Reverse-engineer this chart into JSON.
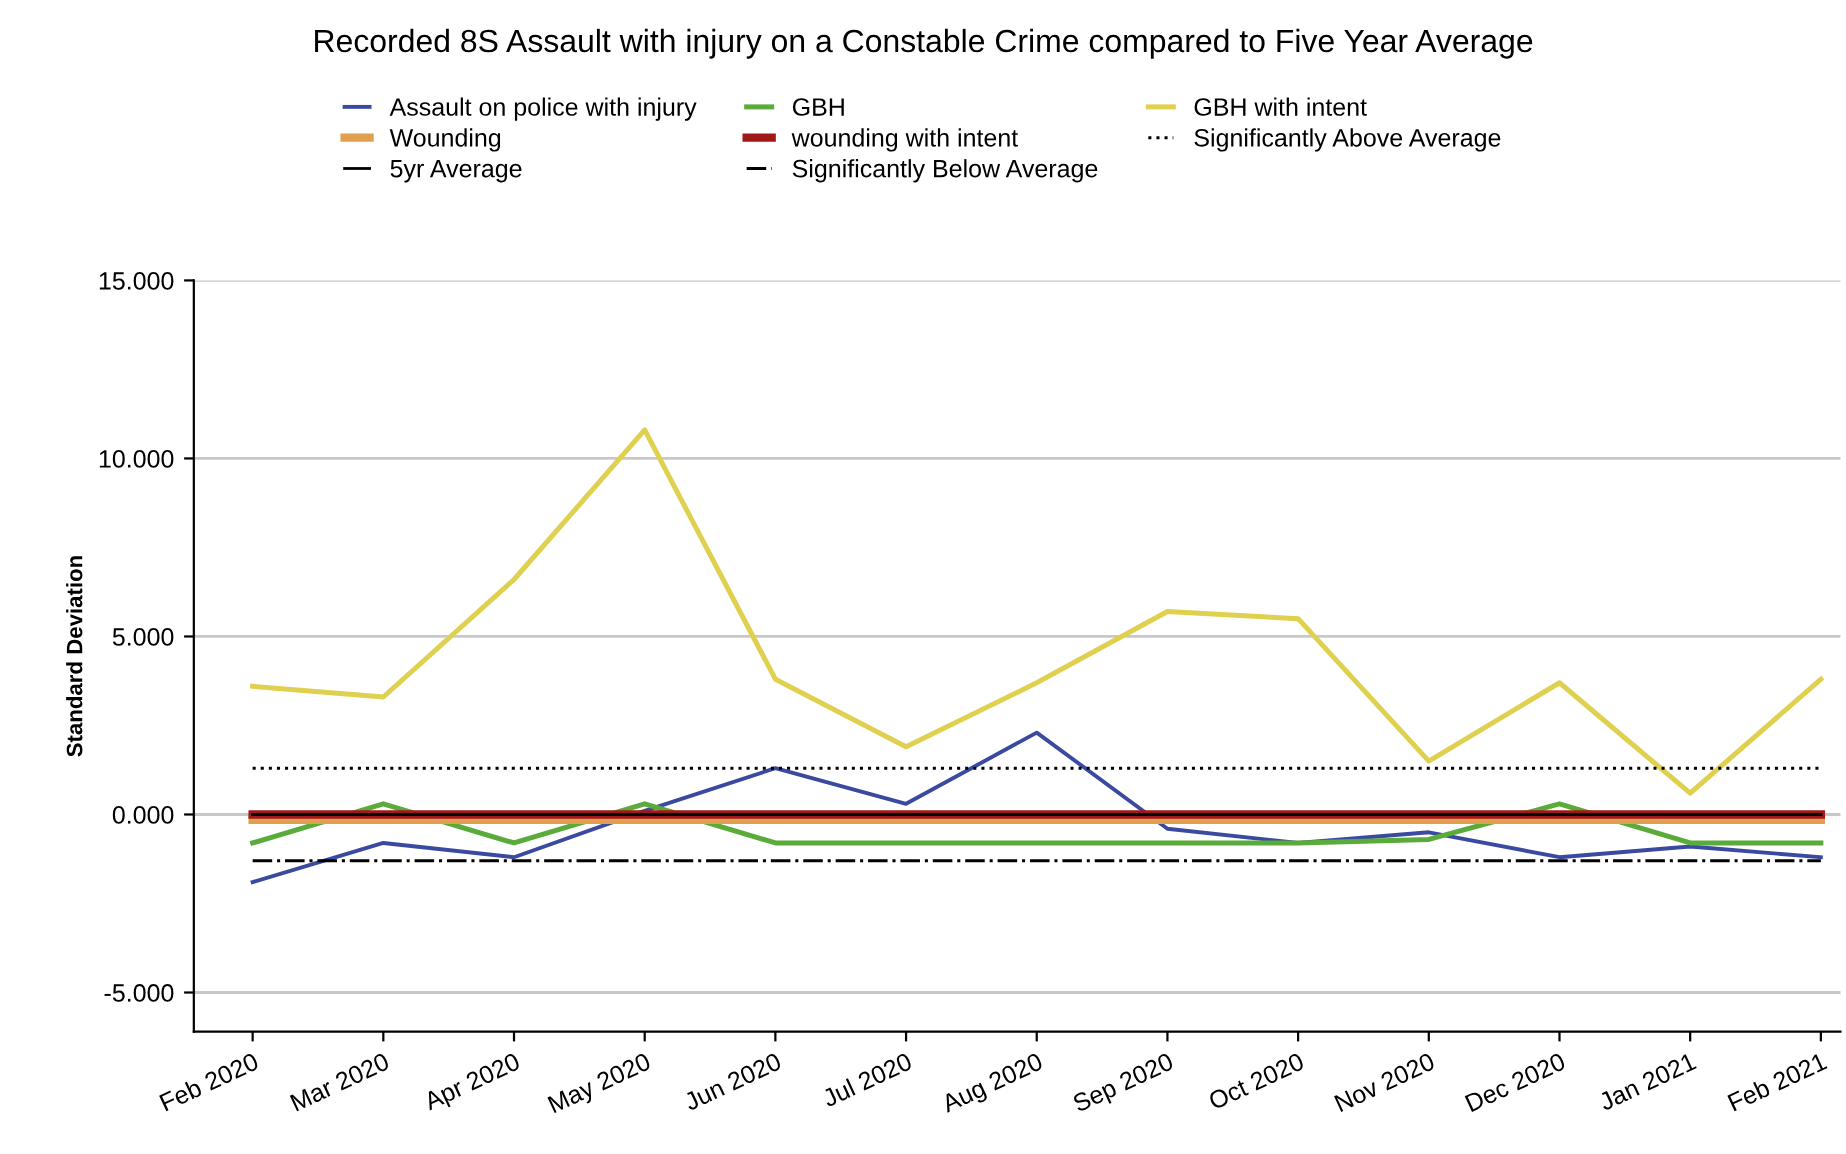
{
  "chart_data": {
    "type": "line",
    "title": "Recorded 8S Assault with injury on a Constable Crime compared to Five Year Average",
    "ylabel": "Standard Deviation",
    "categories": [
      "Feb 2020",
      "Mar 2020",
      "Apr 2020",
      "May 2020",
      "Jun 2020",
      "Jul 2020",
      "Aug 2020",
      "Sep 2020",
      "Oct 2020",
      "Nov 2020",
      "Dec 2020",
      "Jan 2021",
      "Feb 2021"
    ],
    "series": [
      {
        "name": "Assault on police with injury",
        "color": "#3a4aa0",
        "values": [
          -1.9,
          -0.8,
          -1.2,
          0.1,
          1.3,
          0.3,
          2.3,
          -0.4,
          -0.8,
          -0.5,
          -1.2,
          -0.9,
          -1.2
        ]
      },
      {
        "name": "GBH",
        "color": "#5aab3a",
        "values": [
          -0.8,
          0.3,
          -0.8,
          0.3,
          -0.8,
          -0.8,
          -0.8,
          -0.8,
          -0.8,
          -0.7,
          0.3,
          -0.8,
          -0.8
        ]
      },
      {
        "name": "GBH with intent",
        "color": "#e0d050",
        "values": [
          3.6,
          3.3,
          6.6,
          10.8,
          3.8,
          1.9,
          3.7,
          5.7,
          5.5,
          1.5,
          3.7,
          0.6,
          3.8
        ]
      },
      {
        "name": "Wounding",
        "color": "#e0a050",
        "values": [
          -0.15,
          -0.15,
          -0.15,
          -0.15,
          -0.15,
          -0.15,
          -0.15,
          -0.15,
          -0.15,
          -0.15,
          -0.15,
          -0.15,
          -0.15
        ]
      },
      {
        "name": "wounding with intent",
        "color": "#a01818",
        "values": [
          0,
          0,
          0,
          0,
          0,
          0,
          0,
          0,
          0,
          0,
          0,
          0,
          0
        ]
      },
      {
        "name": "Significantly Above Average",
        "color": "#000000",
        "line_style": "dotted",
        "values": [
          1.3,
          1.3,
          1.3,
          1.3,
          1.3,
          1.3,
          1.3,
          1.3,
          1.3,
          1.3,
          1.3,
          1.3,
          1.3
        ]
      },
      {
        "name": "5yr Average",
        "color": "#000000",
        "values": [
          0,
          0,
          0,
          0,
          0,
          0,
          0,
          0,
          0,
          0,
          0,
          0,
          0
        ]
      },
      {
        "name": "Significantly Below Average",
        "color": "#000000",
        "line_style": "dashdot",
        "values": [
          -1.3,
          -1.3,
          -1.3,
          -1.3,
          -1.3,
          -1.3,
          -1.3,
          -1.3,
          -1.3,
          -1.3,
          -1.3,
          -1.3,
          -1.3
        ]
      }
    ],
    "ylim": [
      -6.1,
      15
    ],
    "yticks": [
      {
        "value": -5,
        "label": "-5.000"
      },
      {
        "value": 0,
        "label": "0.000"
      },
      {
        "value": 5,
        "label": "5.000"
      },
      {
        "value": 10,
        "label": "10.000"
      },
      {
        "value": 15,
        "label": "15.000"
      }
    ],
    "grid": "y",
    "legend": "top",
    "marker": "none",
    "line_style": "solid"
  }
}
